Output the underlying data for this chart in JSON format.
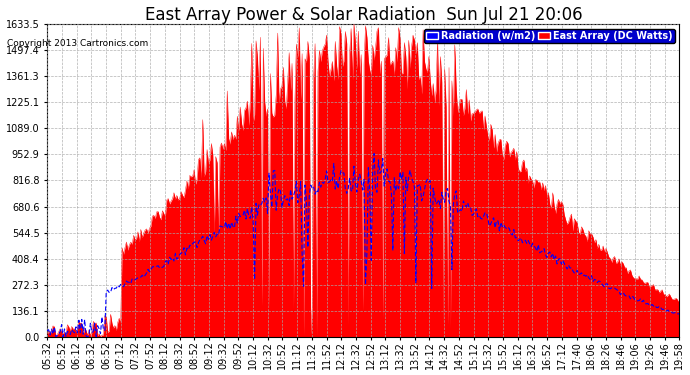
{
  "title": "East Array Power & Solar Radiation  Sun Jul 21 20:06",
  "copyright": "Copyright 2013 Cartronics.com",
  "legend_radiation": "Radiation (w/m2)",
  "legend_east_array": "East Array (DC Watts)",
  "y_max": 1633.5,
  "y_min": 0.0,
  "y_ticks": [
    0.0,
    136.1,
    272.3,
    408.4,
    544.5,
    680.6,
    816.8,
    952.9,
    1089.0,
    1225.1,
    1361.3,
    1497.4,
    1633.5
  ],
  "plot_bg_color": "#ffffff",
  "fig_bg_color": "#ffffff",
  "grid_color": "#aaaaaa",
  "red_color": "#ff0000",
  "blue_color": "#0000ff",
  "title_fontsize": 12,
  "tick_fontsize": 7,
  "copyright_fontsize": 6.5,
  "legend_fontsize": 7,
  "x_labels": [
    "05:32",
    "05:52",
    "06:12",
    "06:32",
    "06:52",
    "07:12",
    "07:32",
    "07:52",
    "08:12",
    "08:32",
    "08:52",
    "09:12",
    "09:32",
    "09:52",
    "10:12",
    "10:32",
    "10:52",
    "11:12",
    "11:32",
    "11:52",
    "12:12",
    "12:32",
    "12:52",
    "13:12",
    "13:32",
    "13:52",
    "14:12",
    "14:32",
    "14:52",
    "15:12",
    "15:32",
    "15:52",
    "16:12",
    "16:32",
    "16:52",
    "17:12",
    "17:40",
    "18:06",
    "18:26",
    "18:46",
    "19:06",
    "19:26",
    "19:46",
    "19:58"
  ]
}
